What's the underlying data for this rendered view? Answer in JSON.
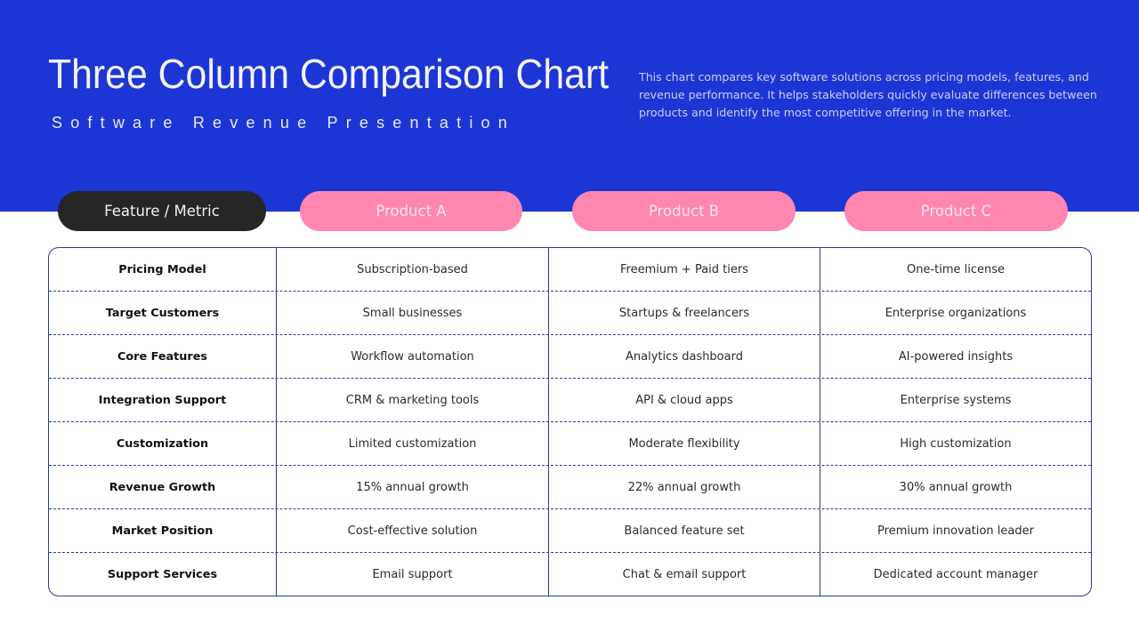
{
  "header": {
    "title": "Three Column Comparison Chart",
    "subtitle": "Software Revenue Presentation",
    "description": "This chart compares key software solutions across pricing models, features, and revenue performance. It helps stakeholders quickly evaluate differences between products and identify the most competitive offering in the market."
  },
  "colors": {
    "hero_bg": "#1c36d6",
    "feature_pill": "#262626",
    "product_pill": "#ff86b0",
    "table_border": "#2a3a9c"
  },
  "table": {
    "columns": [
      "Feature / Metric",
      "Product A",
      "Product B",
      "Product C"
    ],
    "rows": [
      {
        "feature": "Pricing Model",
        "a": "Subscription-based",
        "b": "Freemium + Paid tiers",
        "c": "One-time license"
      },
      {
        "feature": "Target Customers",
        "a": "Small businesses",
        "b": "Startups & freelancers",
        "c": "Enterprise organizations"
      },
      {
        "feature": "Core Features",
        "a": "Workflow automation",
        "b": "Analytics dashboard",
        "c": "AI-powered insights"
      },
      {
        "feature": "Integration Support",
        "a": "CRM & marketing tools",
        "b": "API & cloud apps",
        "c": "Enterprise systems"
      },
      {
        "feature": "Customization",
        "a": "Limited customization",
        "b": "Moderate flexibility",
        "c": "High customization"
      },
      {
        "feature": "Revenue Growth",
        "a": "15% annual growth",
        "b": "22% annual growth",
        "c": "30% annual growth"
      },
      {
        "feature": "Market Position",
        "a": "Cost-effective solution",
        "b": "Balanced feature set",
        "c": "Premium innovation leader"
      },
      {
        "feature": "Support Services",
        "a": "Email support",
        "b": "Chat & email support",
        "c": "Dedicated account manager"
      }
    ]
  }
}
